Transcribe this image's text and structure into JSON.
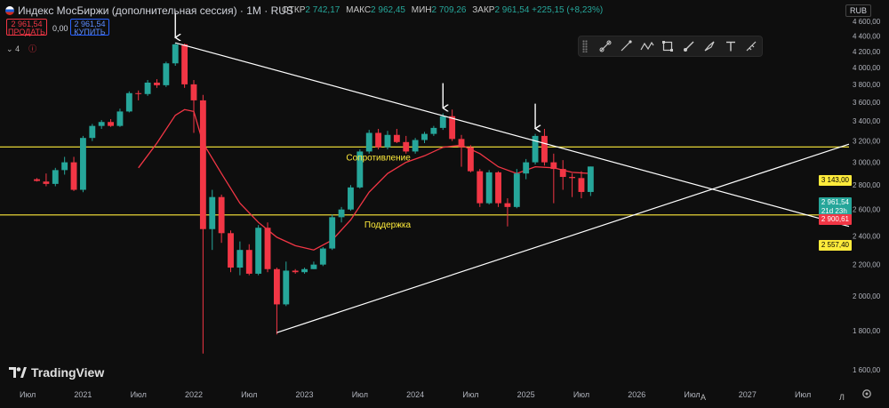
{
  "header": {
    "title": "Индекс МосБиржи (дополнительная сессия) · 1М · RUS",
    "ohlc": [
      {
        "key": "ОТКР",
        "value": "2 742,17"
      },
      {
        "key": "МАКС",
        "value": "2 962,45"
      },
      {
        "key": "МИН",
        "value": "2 709,26"
      },
      {
        "key": "ЗАКР",
        "value": "2 961,54 +225,15 (+8,23%)"
      }
    ]
  },
  "trade": {
    "sell_price": "2 961,54",
    "sell_label": "ПРОДАТЬ",
    "spread": "0,00",
    "buy_price": "2 961,54",
    "buy_label": "КУПИТЬ"
  },
  "indicators": {
    "count": "4"
  },
  "currency": "RUB",
  "toolbar": {
    "tools": [
      "ray-tool-icon",
      "trendline-tool-icon",
      "path-tool-icon",
      "rectangle-tool-icon",
      "brush-tool-icon",
      "fill-tool-icon",
      "text-tool-icon",
      "ruler-tool-icon"
    ]
  },
  "brand": "TradingView",
  "footer": {
    "tz": "A",
    "log": "Л"
  },
  "colors": {
    "up": "#26a69a",
    "down": "#f23645",
    "ema": "#f23645",
    "level": "#ffeb3b",
    "trend": "#ffffff",
    "bg": "#0e0e0e"
  },
  "chart_data": {
    "type": "candlestick",
    "interval": "1M",
    "y_axis": {
      "scale": "log",
      "range": [
        1540,
        4650
      ],
      "ticks": [
        1600,
        1800,
        2000,
        2200,
        2400,
        2600,
        2800,
        3000,
        3200,
        3400,
        3600,
        3800,
        4000,
        4200,
        4400,
        4600
      ],
      "tick_labels": [
        "1 600,00",
        "1 800,00",
        "2 000,00",
        "2 200,00",
        "2 400,00",
        "2 600,00",
        "2 800,00",
        "3 000,00",
        "3 200,00",
        "3 400,00",
        "3 600,00",
        "3 800,00",
        "4 000,00",
        "4 200,00",
        "4 400,00",
        "4 600,00"
      ]
    },
    "x_axis": {
      "range": [
        "2020-04",
        "2027-12"
      ],
      "ticks": [
        {
          "date": "2020-07",
          "label": "Июл"
        },
        {
          "date": "2021-01",
          "label": "2021"
        },
        {
          "date": "2021-07",
          "label": "Июл"
        },
        {
          "date": "2022-01",
          "label": "2022"
        },
        {
          "date": "2022-07",
          "label": "Июл"
        },
        {
          "date": "2023-01",
          "label": "2023"
        },
        {
          "date": "2023-07",
          "label": "Июл"
        },
        {
          "date": "2024-01",
          "label": "2024"
        },
        {
          "date": "2024-07",
          "label": "Июл"
        },
        {
          "date": "2025-01",
          "label": "2025"
        },
        {
          "date": "2025-07",
          "label": "Июл"
        },
        {
          "date": "2026-01",
          "label": "2026"
        },
        {
          "date": "2026-07",
          "label": "Июл"
        },
        {
          "date": "2027-01",
          "label": "2027"
        },
        {
          "date": "2027-07",
          "label": "Июл"
        }
      ]
    },
    "candles": [
      {
        "date": "2020-08",
        "o": 2850,
        "h": 2860,
        "l": 2830,
        "c": 2835
      },
      {
        "date": "2020-09",
        "o": 2830,
        "h": 2900,
        "l": 2790,
        "c": 2810
      },
      {
        "date": "2020-10",
        "o": 2810,
        "h": 2950,
        "l": 2790,
        "c": 2930
      },
      {
        "date": "2020-11",
        "o": 2930,
        "h": 3050,
        "l": 2890,
        "c": 3000
      },
      {
        "date": "2020-12",
        "o": 3000,
        "h": 3050,
        "l": 2750,
        "c": 2760
      },
      {
        "date": "2021-01",
        "o": 2760,
        "h": 3250,
        "l": 2740,
        "c": 3230
      },
      {
        "date": "2021-02",
        "o": 3230,
        "h": 3370,
        "l": 3200,
        "c": 3350
      },
      {
        "date": "2021-03",
        "o": 3350,
        "h": 3410,
        "l": 3320,
        "c": 3390
      },
      {
        "date": "2021-04",
        "o": 3390,
        "h": 3420,
        "l": 3340,
        "c": 3350
      },
      {
        "date": "2021-05",
        "o": 3350,
        "h": 3530,
        "l": 3340,
        "c": 3500
      },
      {
        "date": "2021-06",
        "o": 3500,
        "h": 3720,
        "l": 3490,
        "c": 3700
      },
      {
        "date": "2021-07",
        "o": 3700,
        "h": 3730,
        "l": 3620,
        "c": 3690
      },
      {
        "date": "2021-08",
        "o": 3690,
        "h": 3850,
        "l": 3670,
        "c": 3820
      },
      {
        "date": "2021-09",
        "o": 3820,
        "h": 3860,
        "l": 3760,
        "c": 3790
      },
      {
        "date": "2021-10",
        "o": 3790,
        "h": 4070,
        "l": 3770,
        "c": 4050
      },
      {
        "date": "2021-11",
        "o": 4050,
        "h": 4310,
        "l": 4020,
        "c": 4290
      },
      {
        "date": "2021-12",
        "o": 4290,
        "h": 4300,
        "l": 3760,
        "c": 3800
      },
      {
        "date": "2022-01",
        "o": 3800,
        "h": 3850,
        "l": 3280,
        "c": 3620
      },
      {
        "date": "2022-02",
        "o": 3620,
        "h": 3680,
        "l": 1680,
        "c": 2450
      },
      {
        "date": "2022-03",
        "o": 2450,
        "h": 2760,
        "l": 2300,
        "c": 2700
      },
      {
        "date": "2022-04",
        "o": 2700,
        "h": 2720,
        "l": 2350,
        "c": 2420
      },
      {
        "date": "2022-05",
        "o": 2420,
        "h": 2440,
        "l": 2150,
        "c": 2180
      },
      {
        "date": "2022-06",
        "o": 2180,
        "h": 2360,
        "l": 2130,
        "c": 2300
      },
      {
        "date": "2022-07",
        "o": 2300,
        "h": 2340,
        "l": 2130,
        "c": 2140
      },
      {
        "date": "2022-08",
        "o": 2140,
        "h": 2480,
        "l": 2130,
        "c": 2460
      },
      {
        "date": "2022-09",
        "o": 2460,
        "h": 2500,
        "l": 2150,
        "c": 2170
      },
      {
        "date": "2022-10",
        "o": 2170,
        "h": 2180,
        "l": 1780,
        "c": 1950
      },
      {
        "date": "2022-11",
        "o": 1950,
        "h": 2220,
        "l": 1940,
        "c": 2160
      },
      {
        "date": "2022-12",
        "o": 2160,
        "h": 2170,
        "l": 2140,
        "c": 2150
      },
      {
        "date": "2023-01",
        "o": 2150,
        "h": 2180,
        "l": 2140,
        "c": 2170
      },
      {
        "date": "2023-02",
        "o": 2170,
        "h": 2220,
        "l": 2170,
        "c": 2200
      },
      {
        "date": "2023-03",
        "o": 2200,
        "h": 2320,
        "l": 2190,
        "c": 2310
      },
      {
        "date": "2023-04",
        "o": 2310,
        "h": 2560,
        "l": 2300,
        "c": 2540
      },
      {
        "date": "2023-05",
        "o": 2540,
        "h": 2620,
        "l": 2500,
        "c": 2600
      },
      {
        "date": "2023-06",
        "o": 2600,
        "h": 2800,
        "l": 2590,
        "c": 2780
      },
      {
        "date": "2023-07",
        "o": 2780,
        "h": 3120,
        "l": 2770,
        "c": 3100
      },
      {
        "date": "2023-08",
        "o": 3100,
        "h": 3310,
        "l": 3080,
        "c": 3280
      },
      {
        "date": "2023-09",
        "o": 3280,
        "h": 3320,
        "l": 3120,
        "c": 3140
      },
      {
        "date": "2023-10",
        "o": 3140,
        "h": 3300,
        "l": 3120,
        "c": 3260
      },
      {
        "date": "2023-11",
        "o": 3260,
        "h": 3320,
        "l": 3180,
        "c": 3190
      },
      {
        "date": "2023-12",
        "o": 3190,
        "h": 3250,
        "l": 3080,
        "c": 3100
      },
      {
        "date": "2024-01",
        "o": 3100,
        "h": 3230,
        "l": 3080,
        "c": 3210
      },
      {
        "date": "2024-02",
        "o": 3210,
        "h": 3290,
        "l": 3180,
        "c": 3270
      },
      {
        "date": "2024-03",
        "o": 3270,
        "h": 3350,
        "l": 3250,
        "c": 3330
      },
      {
        "date": "2024-04",
        "o": 3330,
        "h": 3480,
        "l": 3310,
        "c": 3450
      },
      {
        "date": "2024-05",
        "o": 3450,
        "h": 3520,
        "l": 3200,
        "c": 3220
      },
      {
        "date": "2024-06",
        "o": 3220,
        "h": 3260,
        "l": 2960,
        "c": 3140
      },
      {
        "date": "2024-07",
        "o": 3140,
        "h": 3160,
        "l": 2910,
        "c": 2920
      },
      {
        "date": "2024-08",
        "o": 2920,
        "h": 2940,
        "l": 2620,
        "c": 2650
      },
      {
        "date": "2024-09",
        "o": 2650,
        "h": 2930,
        "l": 2640,
        "c": 2910
      },
      {
        "date": "2024-10",
        "o": 2910,
        "h": 2920,
        "l": 2620,
        "c": 2650
      },
      {
        "date": "2024-11",
        "o": 2650,
        "h": 2690,
        "l": 2470,
        "c": 2620
      },
      {
        "date": "2024-12",
        "o": 2620,
        "h": 2940,
        "l": 2610,
        "c": 2900
      },
      {
        "date": "2025-01",
        "o": 2900,
        "h": 3030,
        "l": 2850,
        "c": 3000
      },
      {
        "date": "2025-02",
        "o": 3000,
        "h": 3270,
        "l": 2980,
        "c": 3250
      },
      {
        "date": "2025-03",
        "o": 3250,
        "h": 3320,
        "l": 2970,
        "c": 3000
      },
      {
        "date": "2025-04",
        "o": 3000,
        "h": 3080,
        "l": 2650,
        "c": 2940
      },
      {
        "date": "2025-05",
        "o": 2940,
        "h": 3020,
        "l": 2760,
        "c": 2870
      },
      {
        "date": "2025-06",
        "o": 2870,
        "h": 2900,
        "l": 2700,
        "c": 2860
      },
      {
        "date": "2025-07",
        "o": 2860,
        "h": 2920,
        "l": 2690,
        "c": 2742
      },
      {
        "date": "2025-08",
        "o": 2742,
        "h": 2962,
        "l": 2709,
        "c": 2962
      }
    ],
    "ema": {
      "color": "#f23645",
      "points": [
        {
          "date": "2021-07",
          "v": 2950
        },
        {
          "date": "2021-09",
          "v": 3180
        },
        {
          "date": "2021-11",
          "v": 3460
        },
        {
          "date": "2021-12",
          "v": 3520
        },
        {
          "date": "2022-01",
          "v": 3500
        },
        {
          "date": "2022-02",
          "v": 3180
        },
        {
          "date": "2022-04",
          "v": 2900
        },
        {
          "date": "2022-06",
          "v": 2650
        },
        {
          "date": "2022-08",
          "v": 2500
        },
        {
          "date": "2022-10",
          "v": 2390
        },
        {
          "date": "2022-12",
          "v": 2330
        },
        {
          "date": "2023-02",
          "v": 2300
        },
        {
          "date": "2023-04",
          "v": 2370
        },
        {
          "date": "2023-06",
          "v": 2520
        },
        {
          "date": "2023-08",
          "v": 2740
        },
        {
          "date": "2023-10",
          "v": 2900
        },
        {
          "date": "2023-12",
          "v": 3000
        },
        {
          "date": "2024-02",
          "v": 3060
        },
        {
          "date": "2024-04",
          "v": 3140
        },
        {
          "date": "2024-06",
          "v": 3160
        },
        {
          "date": "2024-08",
          "v": 3080
        },
        {
          "date": "2024-10",
          "v": 2960
        },
        {
          "date": "2024-12",
          "v": 2900
        },
        {
          "date": "2025-02",
          "v": 2960
        },
        {
          "date": "2025-04",
          "v": 2950
        },
        {
          "date": "2025-06",
          "v": 2910
        },
        {
          "date": "2025-08",
          "v": 2900
        }
      ]
    },
    "horizontal_levels": [
      {
        "label": "Сопротивление",
        "value": 3143,
        "tag": "3 143,00"
      },
      {
        "label": "Поддержка",
        "value": 2557.4,
        "tag": "2 557,40"
      }
    ],
    "trendlines": [
      {
        "from": {
          "date": "2021-11",
          "v": 4310
        },
        "to": {
          "date": "2027-12",
          "v": 2470
        }
      },
      {
        "from": {
          "date": "2022-10",
          "v": 1790
        },
        "to": {
          "date": "2027-12",
          "v": 3170
        }
      }
    ],
    "arrows": [
      {
        "date": "2021-11"
      },
      {
        "date": "2024-04"
      },
      {
        "date": "2025-02"
      }
    ],
    "price_tags": {
      "current": {
        "value": 2961.54,
        "label": "2 961,54",
        "sub": "21d 23h"
      },
      "ema": {
        "value": 2900.61,
        "label": "2 900,61"
      }
    }
  }
}
